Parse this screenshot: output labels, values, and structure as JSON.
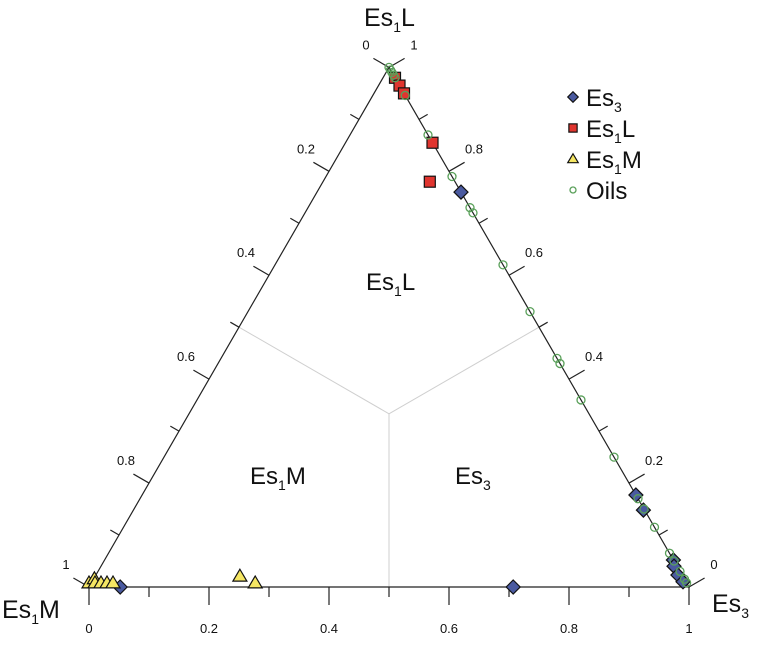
{
  "chart_data": {
    "type": "ternary",
    "vertices": {
      "top": {
        "base": "Es",
        "sub": "1",
        "tail": "L"
      },
      "left": {
        "base": "Es",
        "sub": "1",
        "tail": "M"
      },
      "right": {
        "base": "Es",
        "sub": "3",
        "tail": ""
      }
    },
    "axes": {
      "bottom": {
        "component": "Es3",
        "ticks": [
          "0",
          "0.2",
          "0.4",
          "0.6",
          "0.8",
          "1"
        ]
      },
      "left": {
        "component": "Es1M",
        "ticks": [
          "1",
          "0.8",
          "0.6",
          "0.4",
          "0.2",
          "0"
        ]
      },
      "right": {
        "component": "Es1L",
        "ticks": [
          "0",
          "0.2",
          "0.4",
          "0.6",
          "0.8",
          "1"
        ]
      }
    },
    "regions": [
      {
        "base": "Es",
        "sub": "1",
        "tail": "L"
      },
      {
        "base": "Es",
        "sub": "1",
        "tail": "M"
      },
      {
        "base": "Es",
        "sub": "3",
        "tail": ""
      }
    ],
    "legend_position": "top-right",
    "series": [
      {
        "name": {
          "base": "Es",
          "sub": "3",
          "tail": ""
        },
        "marker": "diamond",
        "color": "#4a5aa0",
        "points": [
          {
            "es1l": 0.76,
            "es3": 0.24,
            "es1m": 0.0
          },
          {
            "es1l": 0.177,
            "es3": 0.823,
            "es1m": 0.0
          },
          {
            "es1l": 0.148,
            "es3": 0.85,
            "es1m": 0.002
          },
          {
            "es1l": 0.052,
            "es3": 0.948,
            "es1m": 0.0
          },
          {
            "es1l": 0.04,
            "es3": 0.955,
            "es1m": 0.005
          },
          {
            "es1l": 0.023,
            "es3": 0.97,
            "es1m": 0.007
          },
          {
            "es1l": 0.01,
            "es3": 0.985,
            "es1m": 0.005
          },
          {
            "es1l": 0.0,
            "es3": 0.707,
            "es1m": 0.293
          },
          {
            "es1l": 0.0,
            "es3": 0.052,
            "es1m": 0.948
          }
        ]
      },
      {
        "name": {
          "base": "Es",
          "sub": "1",
          "tail": "L"
        },
        "marker": "square",
        "color": "#e0352f",
        "points": [
          {
            "es1l": 0.98,
            "es3": 0.02,
            "es1m": 0.0
          },
          {
            "es1l": 0.965,
            "es3": 0.035,
            "es1m": 0.0
          },
          {
            "es1l": 0.95,
            "es3": 0.05,
            "es1m": 0.0
          },
          {
            "es1l": 0.855,
            "es3": 0.145,
            "es1m": 0.0
          },
          {
            "es1l": 0.78,
            "es3": 0.178,
            "es1m": 0.042
          }
        ]
      },
      {
        "name": {
          "base": "Es",
          "sub": "1",
          "tail": "M"
        },
        "marker": "triangle",
        "color": "#f5e663",
        "points": [
          {
            "es1l": 0.0,
            "es3": 0.0,
            "es1m": 1.0
          },
          {
            "es1l": 0.008,
            "es3": 0.005,
            "es1m": 0.987
          },
          {
            "es1l": 0.0,
            "es3": 0.01,
            "es1m": 0.99
          },
          {
            "es1l": 0.0,
            "es3": 0.02,
            "es1m": 0.98
          },
          {
            "es1l": 0.0,
            "es3": 0.03,
            "es1m": 0.97
          },
          {
            "es1l": 0.0,
            "es3": 0.04,
            "es1m": 0.96
          },
          {
            "es1l": 0.013,
            "es3": 0.245,
            "es1m": 0.742
          },
          {
            "es1l": 0.0,
            "es3": 0.277,
            "es1m": 0.723
          }
        ]
      },
      {
        "name": {
          "base": "Oils",
          "sub": "",
          "tail": ""
        },
        "marker": "circle",
        "color": "#5aa05a",
        "points": [
          {
            "es1l": 1.0,
            "es3": 0.0,
            "es1m": 0.0
          },
          {
            "es1l": 0.995,
            "es3": 0.005,
            "es1m": 0.0
          },
          {
            "es1l": 0.99,
            "es3": 0.01,
            "es1m": 0.0
          },
          {
            "es1l": 0.985,
            "es3": 0.015,
            "es1m": 0.0
          },
          {
            "es1l": 0.98,
            "es3": 0.02,
            "es1m": 0.0
          },
          {
            "es1l": 0.946,
            "es3": 0.054,
            "es1m": 0.0
          },
          {
            "es1l": 0.87,
            "es3": 0.13,
            "es1m": 0.0
          },
          {
            "es1l": 0.79,
            "es3": 0.21,
            "es1m": 0.0
          },
          {
            "es1l": 0.73,
            "es3": 0.27,
            "es1m": 0.0
          },
          {
            "es1l": 0.72,
            "es3": 0.28,
            "es1m": 0.0
          },
          {
            "es1l": 0.62,
            "es3": 0.38,
            "es1m": 0.0
          },
          {
            "es1l": 0.53,
            "es3": 0.47,
            "es1m": 0.0
          },
          {
            "es1l": 0.44,
            "es3": 0.56,
            "es1m": 0.0
          },
          {
            "es1l": 0.43,
            "es3": 0.57,
            "es1m": 0.0
          },
          {
            "es1l": 0.36,
            "es3": 0.64,
            "es1m": 0.0
          },
          {
            "es1l": 0.25,
            "es3": 0.75,
            "es1m": 0.0
          },
          {
            "es1l": 0.17,
            "es3": 0.83,
            "es1m": 0.0
          },
          {
            "es1l": 0.15,
            "es3": 0.85,
            "es1m": 0.0
          },
          {
            "es1l": 0.115,
            "es3": 0.885,
            "es1m": 0.0
          },
          {
            "es1l": 0.065,
            "es3": 0.935,
            "es1m": 0.0
          },
          {
            "es1l": 0.05,
            "es3": 0.95,
            "es1m": 0.0
          },
          {
            "es1l": 0.03,
            "es3": 0.97,
            "es1m": 0.0
          },
          {
            "es1l": 0.015,
            "es3": 0.985,
            "es1m": 0.0
          },
          {
            "es1l": 0.008,
            "es3": 0.992,
            "es1m": 0.0
          }
        ]
      }
    ]
  }
}
